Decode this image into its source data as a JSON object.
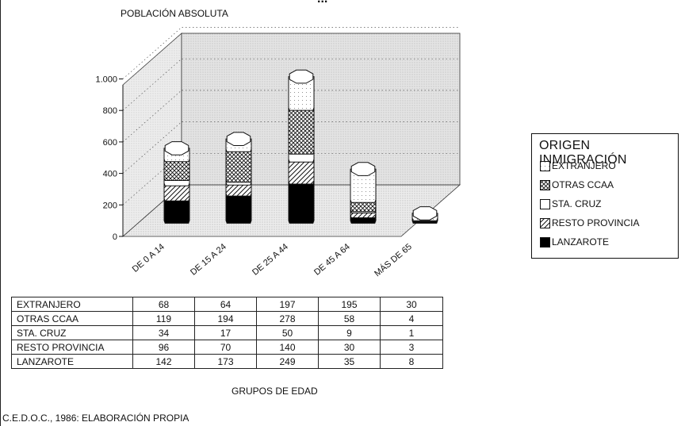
{
  "chart_data": {
    "type": "bar",
    "title_fragment": "...",
    "ylabel": "POBLACIÓN ABSOLUTA",
    "xlabel": "GRUPOS DE EDAD",
    "ylim": [
      0,
      1000
    ],
    "yticks": [
      0,
      200,
      400,
      600,
      800,
      1000
    ],
    "ytick_labels": [
      "0",
      "200",
      "400",
      "600",
      "800",
      "1.000"
    ],
    "stacked": true,
    "categories": [
      "DE 0 A 14",
      "DE 15 A 24",
      "DE 25 A 44",
      "DE 45 A 64",
      "MÁS DE 65"
    ],
    "legend_title": "ORIGEN INMIGRACIÓN",
    "legend_position": "right",
    "series": [
      {
        "name": "EXTRANJERO",
        "values": [
          68,
          64,
          197,
          195,
          30
        ],
        "pattern": "dots"
      },
      {
        "name": "OTRAS CCAA",
        "values": [
          119,
          194,
          278,
          58,
          4
        ],
        "pattern": "crosshatch"
      },
      {
        "name": "STA. CRUZ",
        "values": [
          34,
          17,
          50,
          9,
          1
        ],
        "pattern": "blank"
      },
      {
        "name": "RESTO PROVINCIA",
        "values": [
          96,
          70,
          140,
          30,
          3
        ],
        "pattern": "diagonal"
      },
      {
        "name": "LANZAROTE",
        "values": [
          142,
          173,
          249,
          35,
          8
        ],
        "pattern": "solid"
      }
    ],
    "stack_order_bottom_to_top": [
      "LANZAROTE",
      "RESTO PROVINCIA",
      "STA. CRUZ",
      "OTRAS CCAA",
      "EXTRANJERO"
    ],
    "grid": true,
    "source": "C.E.D.O.C., 1986: ELABORACIÓN PROPIA"
  }
}
